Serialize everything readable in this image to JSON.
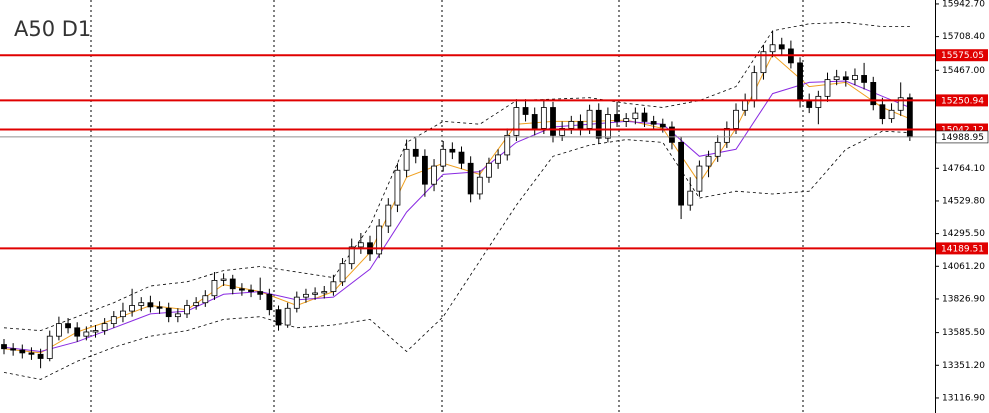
{
  "chart_data": {
    "type": "candlestick",
    "title": "A50 D1",
    "ylim": [
      13009,
      15971
    ],
    "yticks": [
      {
        "value": 15942.7,
        "label": "15942.70"
      },
      {
        "value": 15708.4,
        "label": "15708.40"
      },
      {
        "value": 15467,
        "label": "15467.00"
      },
      {
        "value": 14764.1,
        "label": "14764.10"
      },
      {
        "value": 14529.8,
        "label": "14529.80"
      },
      {
        "value": 14295.5,
        "label": "14295.50"
      },
      {
        "value": 14061.2,
        "label": "14061.20"
      },
      {
        "value": 13826.9,
        "label": "13826.90"
      },
      {
        "value": 13585.5,
        "label": "13585.50"
      },
      {
        "value": 13351.2,
        "label": "13351.20"
      },
      {
        "value": 13116.9,
        "label": "13116.90"
      }
    ],
    "up_color": "#ffffff",
    "down_color": "#000000",
    "open": [
      13500,
      13470,
      13460,
      13440,
      13430,
      13400,
      13560,
      13650,
      13620,
      13560,
      13590,
      13600,
      13650,
      13700,
      13740,
      13780,
      13800,
      13770,
      13760,
      13700,
      13720,
      13780,
      13800,
      13850,
      13960,
      13970,
      13900,
      13890,
      13880,
      13860,
      13750,
      13640,
      13760,
      13840,
      13860,
      13870,
      13880,
      13950,
      14080,
      14200,
      14230,
      14150,
      14350,
      14500,
      14750,
      14900,
      14850,
      14650,
      14780,
      14900,
      14880,
      14800,
      14580,
      14700,
      14800,
      14860,
      15000,
      15200,
      15150,
      15050,
      15200,
      15000,
      15050,
      15100,
      15050,
      15180,
      14980,
      15150,
      15100,
      15120,
      15160,
      15100,
      15080,
      15060,
      14950,
      14500,
      14600,
      14780,
      14850,
      14950,
      15050,
      15180,
      15250,
      15450,
      15600,
      15650,
      15620,
      15520,
      15250,
      15200,
      15280,
      15400,
      15420,
      15400,
      15430,
      15380,
      15220,
      15120,
      15180,
      15270
    ],
    "high": [
      13540,
      13510,
      13500,
      13480,
      13470,
      13600,
      13700,
      13690,
      13660,
      13630,
      13640,
      13690,
      13740,
      13800,
      13900,
      13840,
      13850,
      13810,
      13800,
      13760,
      13820,
      13840,
      13890,
      14020,
      14010,
      14000,
      13940,
      13930,
      13980,
      13900,
      13780,
      13800,
      13880,
      13900,
      13910,
      13920,
      14000,
      14120,
      14260,
      14300,
      14280,
      14400,
      14550,
      14800,
      14970,
      14980,
      14900,
      14830,
      14960,
      14950,
      14920,
      14850,
      14750,
      14840,
      14900,
      15050,
      15260,
      15260,
      15200,
      15260,
      15240,
      15100,
      15140,
      15150,
      15220,
      15230,
      15200,
      15240,
      15160,
      15200,
      15200,
      15140,
      15120,
      15100,
      14990,
      14700,
      14820,
      14890,
      15000,
      15100,
      15230,
      15300,
      15500,
      15650,
      15750,
      15700,
      15680,
      15560,
      15300,
      15320,
      15450,
      15470,
      15460,
      15480,
      15520,
      15420,
      15270,
      15230,
      15380,
      15300
    ],
    "low": [
      13430,
      13420,
      13400,
      13390,
      13330,
      13380,
      13530,
      13580,
      13520,
      13530,
      13550,
      13570,
      13620,
      13660,
      13700,
      13740,
      13730,
      13720,
      13660,
      13660,
      13690,
      13750,
      13770,
      13820,
      13920,
      13860,
      13850,
      13840,
      13820,
      13710,
      13600,
      13620,
      13730,
      13800,
      13820,
      13830,
      13850,
      13920,
      14040,
      14150,
      14100,
      14120,
      14300,
      14450,
      14700,
      14800,
      14560,
      14600,
      14740,
      14830,
      14760,
      14520,
      14540,
      14660,
      14760,
      14820,
      14960,
      15100,
      15000,
      15010,
      14950,
      14960,
      15010,
      15000,
      15010,
      14940,
      14950,
      15060,
      15060,
      15080,
      15060,
      15040,
      15020,
      14900,
      14400,
      14460,
      14560,
      14700,
      14810,
      14910,
      15010,
      15140,
      15200,
      15400,
      15560,
      15580,
      15480,
      15200,
      15160,
      15080,
      15240,
      15360,
      15350,
      15360,
      15330,
      15180,
      15080,
      15090,
      15140,
      14960
    ],
    "close": [
      13470,
      13460,
      13440,
      13430,
      13400,
      13560,
      13650,
      13620,
      13560,
      13590,
      13600,
      13650,
      13700,
      13740,
      13780,
      13800,
      13770,
      13760,
      13700,
      13720,
      13780,
      13800,
      13850,
      13960,
      13970,
      13900,
      13890,
      13880,
      13860,
      13750,
      13640,
      13760,
      13840,
      13860,
      13870,
      13880,
      13950,
      14080,
      14200,
      14230,
      14150,
      14350,
      14500,
      14750,
      14900,
      14850,
      14650,
      14780,
      14900,
      14880,
      14800,
      14580,
      14700,
      14800,
      14860,
      15000,
      15200,
      15150,
      15050,
      15200,
      15000,
      15050,
      15100,
      15050,
      15180,
      14980,
      15150,
      15100,
      15120,
      15160,
      15100,
      15080,
      15060,
      14950,
      14500,
      14600,
      14780,
      14850,
      14950,
      15050,
      15180,
      15250,
      15450,
      15600,
      15650,
      15620,
      15520,
      15250,
      15200,
      15280,
      15400,
      15420,
      15400,
      15430,
      15380,
      15220,
      15120,
      15180,
      15270,
      14990
    ],
    "overlay_x": [
      0,
      4,
      8,
      12,
      16,
      20,
      24,
      28,
      32,
      36,
      40,
      44,
      48,
      52,
      56,
      60,
      64,
      68,
      72,
      76,
      80,
      84,
      88,
      92,
      96,
      99
    ],
    "overlays": [
      {
        "color": "#f0a020",
        "style": "solid",
        "values": [
          13470,
          13440,
          13590,
          13680,
          13780,
          13750,
          13930,
          13880,
          13780,
          13880,
          14160,
          14700,
          14800,
          14720,
          15080,
          15100,
          15100,
          15110,
          15050,
          14660,
          15050,
          15580,
          15350,
          15380,
          15200,
          15120
        ]
      },
      {
        "color": "#8a2be2",
        "style": "solid",
        "values": [
          13480,
          13450,
          13520,
          13620,
          13720,
          13740,
          13860,
          13880,
          13820,
          13840,
          14040,
          14450,
          14720,
          14740,
          14950,
          15060,
          15080,
          15100,
          15080,
          14850,
          14900,
          15300,
          15380,
          15390,
          15280,
          15200
        ]
      },
      {
        "color": "#000000",
        "style": "dashed",
        "values": [
          13620,
          13600,
          13700,
          13800,
          13920,
          13950,
          14030,
          14060,
          14020,
          13980,
          14350,
          14950,
          15100,
          15080,
          15250,
          15260,
          15270,
          15230,
          15200,
          15250,
          15350,
          15750,
          15800,
          15810,
          15780,
          15780
        ]
      },
      {
        "color": "#000000",
        "style": "dashed",
        "values": [
          13300,
          13250,
          13380,
          13480,
          13560,
          13600,
          13680,
          13700,
          13620,
          13640,
          13680,
          13450,
          13700,
          14100,
          14500,
          14850,
          14930,
          14970,
          14950,
          14550,
          14600,
          14580,
          14600,
          14900,
          15030,
          15020
        ]
      }
    ],
    "levels": [
      {
        "value": 15575.05,
        "color": "#e00000"
      },
      {
        "value": 15250.94,
        "color": "#e00000"
      },
      {
        "value": 15042.12,
        "color": "#e00000"
      },
      {
        "value": 14189.51,
        "color": "#e00000"
      }
    ],
    "current_price": {
      "value": 14988.95,
      "color": "#909090"
    }
  }
}
